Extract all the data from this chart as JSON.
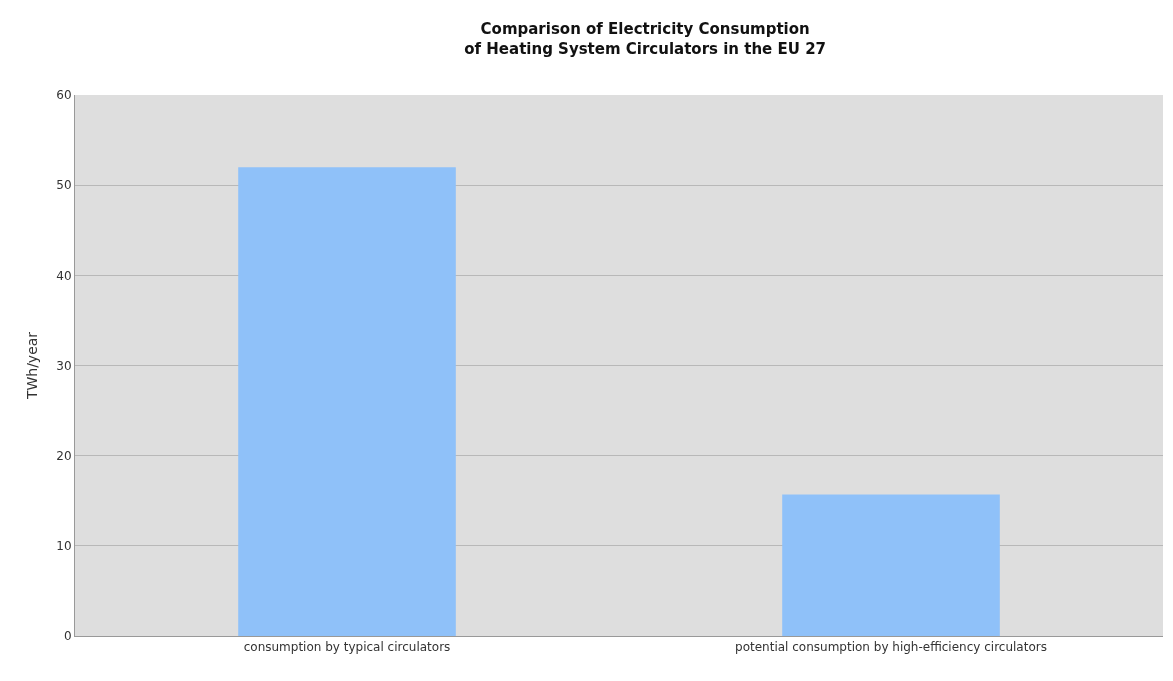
{
  "chart_data": {
    "type": "bar",
    "title": "Comparison of Electricity Consumption\nof Heating System Circulators in the EU 27",
    "ylabel": "TWh/year",
    "categories": [
      "consumption by typical circulators",
      "potential consumption by high-efficiency circulators"
    ],
    "values": [
      52,
      15.7
    ],
    "color": "#8fc1f9",
    "ylim": [
      0,
      60
    ],
    "yticks": [
      0,
      10,
      20,
      30,
      40,
      50,
      60
    ],
    "grid": "y"
  }
}
